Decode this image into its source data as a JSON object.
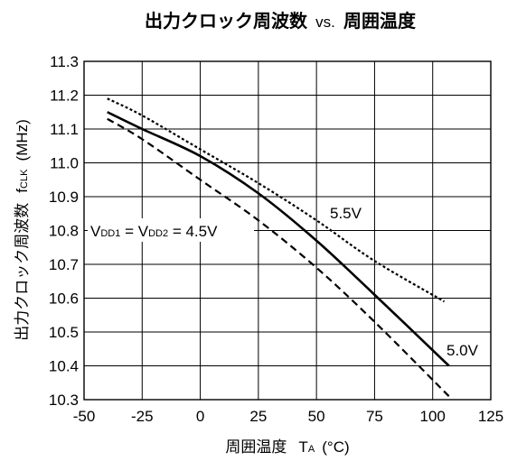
{
  "chart_data": {
    "type": "line",
    "title": {
      "main": "出力クロック周波数",
      "vs": "vs.",
      "tail": "周囲温度"
    },
    "xlabel": {
      "text": "周囲温度",
      "symbol": "T",
      "subscript": "A",
      "unit": "(°C)"
    },
    "ylabel": {
      "text": "出力クロック周波数",
      "symbol": "f",
      "subscript": "CLK",
      "unit": "(MHz)"
    },
    "xlim": [
      -50,
      125
    ],
    "ylim": [
      10.3,
      11.3
    ],
    "x_ticks": [
      "-50",
      "-25",
      "0",
      "25",
      "50",
      "75",
      "100",
      "125"
    ],
    "y_ticks": [
      "10.3",
      "10.4",
      "10.5",
      "10.6",
      "10.7",
      "10.8",
      "10.9",
      "11.0",
      "11.1",
      "11.2",
      "11.3"
    ],
    "grid": true,
    "series": [
      {
        "name": "5.5V",
        "style": "dotted",
        "x": [
          -40,
          -25,
          0,
          25,
          50,
          75,
          105
        ],
        "y": [
          11.19,
          11.14,
          11.04,
          10.94,
          10.83,
          10.71,
          10.59
        ]
      },
      {
        "name": "5.0V",
        "style": "solid",
        "x": [
          -40,
          -25,
          0,
          25,
          50,
          75,
          107
        ],
        "y": [
          11.15,
          11.1,
          11.02,
          10.91,
          10.77,
          10.61,
          10.4
        ]
      },
      {
        "name": "VDD1 = VDD2 = 4.5V",
        "style": "dashed",
        "x": [
          -40,
          -25,
          0,
          25,
          50,
          75,
          107
        ],
        "y": [
          11.13,
          11.07,
          10.95,
          10.83,
          10.69,
          10.53,
          10.31
        ]
      }
    ],
    "annotations": {
      "v55": "5.5V",
      "v50": "5.0V",
      "v45": {
        "v1": "V",
        "s1": "DD1",
        "eq1": " = V",
        "s2": "DD2",
        "eq2": " = 4.5V"
      }
    }
  }
}
